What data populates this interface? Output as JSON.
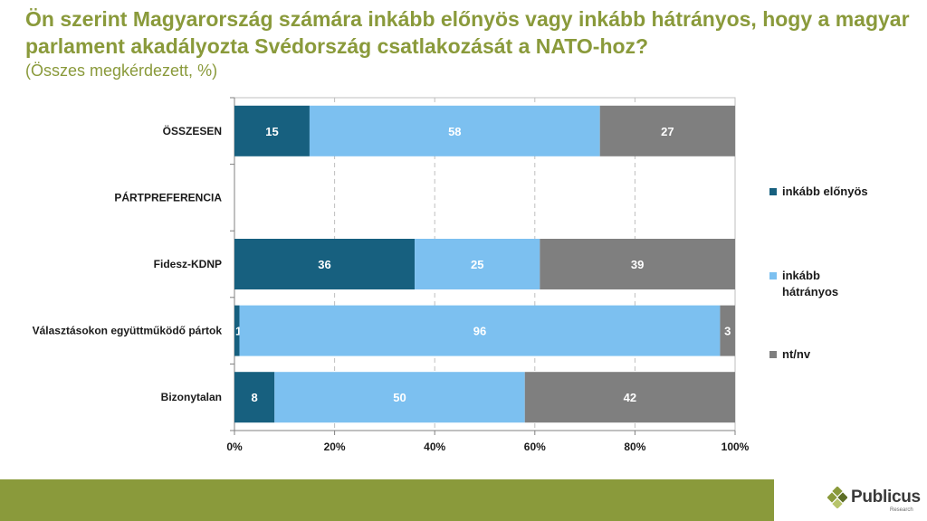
{
  "title": "Ön szerint Magyarország számára inkább előnyös vagy inkább hátrányos, hogy a magyar parlament akadályozta Svédország csatlakozását a NATO-hoz?",
  "subtitle": "(Összes megkérdezett, %)",
  "chart_data": {
    "type": "bar",
    "orientation": "horizontal",
    "stacked": true,
    "categories": [
      "ÖSSZESEN",
      "PÁRTPREFERENCIA",
      "Fidesz-KDNP",
      "Választásokon együttműködő pártok",
      "Bizonytalan"
    ],
    "series": [
      {
        "name": "inkább előnyös",
        "color": "#17607f",
        "values": [
          15,
          null,
          36,
          1,
          8
        ]
      },
      {
        "name": "inkább hátrányos",
        "color": "#7cc0f0",
        "values": [
          58,
          null,
          25,
          96,
          50
        ]
      },
      {
        "name": "nt/nv",
        "color": "#7f7f7f",
        "values": [
          27,
          null,
          39,
          3,
          42
        ]
      }
    ],
    "xlim": [
      0,
      100
    ],
    "x_ticks": [
      "0%",
      "20%",
      "40%",
      "60%",
      "80%",
      "100%"
    ],
    "grid": "vertical dashed",
    "legend_position": "right"
  },
  "logo": {
    "name": "Publicus",
    "sub": "Research"
  }
}
